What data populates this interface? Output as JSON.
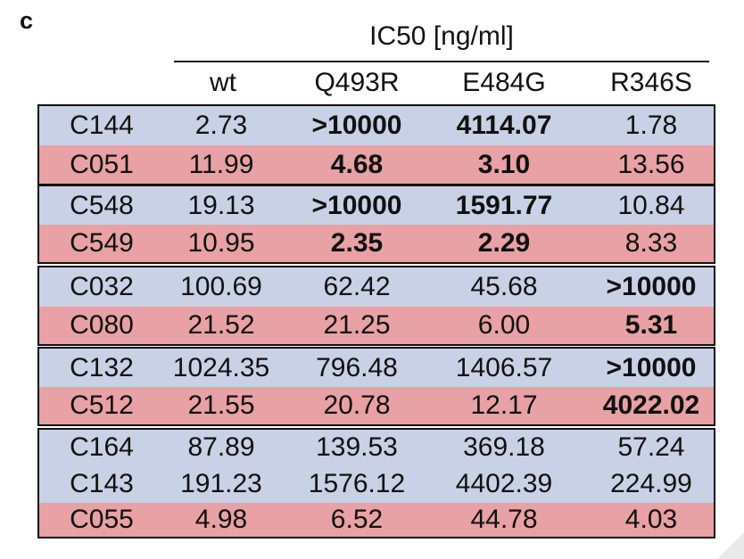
{
  "panel_label": "c",
  "header": {
    "title": "IC50 [ng/ml]"
  },
  "columns": [
    "wt",
    "Q493R",
    "E484G",
    "R346S"
  ],
  "groups": [
    {
      "rows": [
        {
          "name": "C144",
          "color": "#c9d1e6",
          "values": [
            "2.73",
            ">10000",
            "4114.07",
            "1.78"
          ],
          "bold": [
            false,
            true,
            true,
            false
          ]
        },
        {
          "name": "C051",
          "color": "#e8a1a4",
          "values": [
            "11.99",
            "4.68",
            "3.10",
            "13.56"
          ],
          "bold": [
            false,
            true,
            true,
            false
          ]
        }
      ]
    },
    {
      "rows": [
        {
          "name": "C548",
          "color": "#c9d1e6",
          "values": [
            "19.13",
            ">10000",
            "1591.77",
            "10.84"
          ],
          "bold": [
            false,
            true,
            true,
            false
          ]
        },
        {
          "name": "C549",
          "color": "#e8a1a4",
          "values": [
            "10.95",
            "2.35",
            "2.29",
            "8.33"
          ],
          "bold": [
            false,
            true,
            true,
            false
          ]
        }
      ]
    },
    {
      "rows": [
        {
          "name": "C032",
          "color": "#c9d1e6",
          "values": [
            "100.69",
            "62.42",
            "45.68",
            ">10000"
          ],
          "bold": [
            false,
            false,
            false,
            true
          ]
        },
        {
          "name": "C080",
          "color": "#e8a1a4",
          "values": [
            "21.52",
            "21.25",
            "6.00",
            "5.31"
          ],
          "bold": [
            false,
            false,
            false,
            true
          ]
        }
      ]
    },
    {
      "rows": [
        {
          "name": "C132",
          "color": "#c9d1e6",
          "values": [
            "1024.35",
            "796.48",
            "1406.57",
            ">10000"
          ],
          "bold": [
            false,
            false,
            false,
            true
          ]
        },
        {
          "name": "C512",
          "color": "#e8a1a4",
          "values": [
            "21.55",
            "20.78",
            "12.17",
            "4022.02"
          ],
          "bold": [
            false,
            false,
            false,
            true
          ]
        }
      ]
    },
    {
      "rows": [
        {
          "name": "C164",
          "color": "#c9d1e6",
          "values": [
            "87.89",
            "139.53",
            "369.18",
            "57.24"
          ],
          "bold": [
            false,
            false,
            false,
            false
          ]
        },
        {
          "name": "C143",
          "color": "#c9d1e6",
          "values": [
            "191.23",
            "1576.12",
            "4402.39",
            "224.99"
          ],
          "bold": [
            false,
            false,
            false,
            false
          ]
        },
        {
          "name": "C055",
          "color": "#e8a1a4",
          "values": [
            "4.98",
            "6.52",
            "44.78",
            "4.03"
          ],
          "bold": [
            false,
            false,
            false,
            false
          ]
        }
      ]
    }
  ]
}
